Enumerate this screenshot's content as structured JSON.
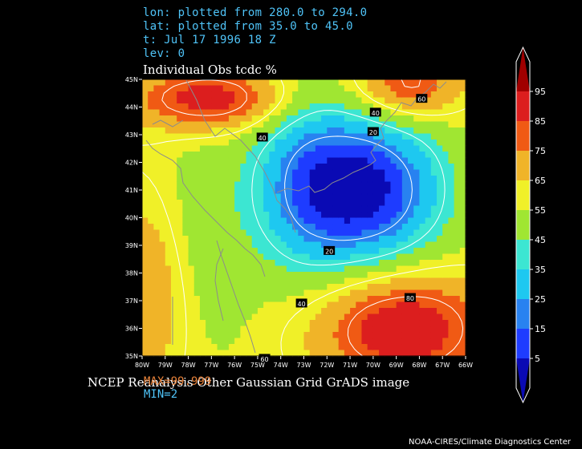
{
  "header": {
    "lon_line": "lon: plotted from 280.0 to 294.0",
    "lat_line": "lat: plotted from 35.0 to 45.0",
    "time_line": "t: Jul 17 1996 18 Z",
    "lev_line": "lev: 0",
    "plot_title": "Individual Obs tcdc %"
  },
  "footer": {
    "title": "NCEP Reanalysis Other Gaussian Grid GrADS image",
    "max_note": "MAX=99.999",
    "min_note": "MIN=2",
    "credit": "NOAA-CIRES/Climate Diagnostics Center"
  },
  "chart_data": {
    "type": "heatmap",
    "title": "Individual Obs tcdc %",
    "xlim": [
      280,
      294
    ],
    "ylim": [
      35,
      45
    ],
    "x_tick_labels": [
      "80W",
      "79W",
      "78W",
      "77W",
      "76W",
      "75W",
      "74W",
      "73W",
      "72W",
      "71W",
      "70W",
      "69W",
      "68W",
      "67W",
      "66W"
    ],
    "y_tick_labels": [
      "35N",
      "36N",
      "37N",
      "38N",
      "39N",
      "40N",
      "41N",
      "42N",
      "43N",
      "44N",
      "45N"
    ],
    "colorbar": {
      "levels": [
        5,
        15,
        25,
        35,
        45,
        55,
        65,
        75,
        85,
        95
      ],
      "colors": [
        "#0a0ab4",
        "#1e3cff",
        "#2882f0",
        "#1ec8f0",
        "#3ce6d2",
        "#a0e632",
        "#f0f028",
        "#f0b428",
        "#f05a14",
        "#dc1e1e",
        "#a00000"
      ]
    },
    "contour_labels": [
      {
        "text": "60",
        "lon": 292.1,
        "lat": 44.3
      },
      {
        "text": "40",
        "lon": 290.1,
        "lat": 43.8
      },
      {
        "text": "20",
        "lon": 290.0,
        "lat": 43.1
      },
      {
        "text": "40",
        "lon": 285.2,
        "lat": 42.9
      },
      {
        "text": "20",
        "lon": 288.1,
        "lat": 38.8
      },
      {
        "text": "40",
        "lon": 286.9,
        "lat": 36.9
      },
      {
        "text": "80",
        "lon": 291.6,
        "lat": 37.1
      },
      {
        "text": "60",
        "lon": 285.3,
        "lat": 34.9
      }
    ]
  }
}
